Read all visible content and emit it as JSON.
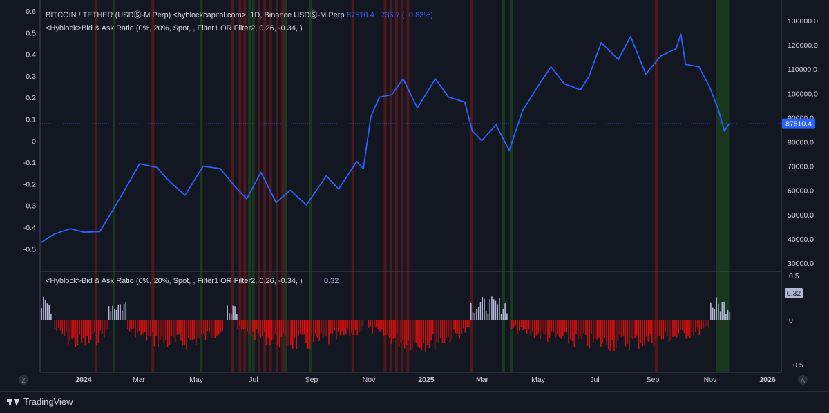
{
  "header": {
    "symbol_line": "BITCOIN / TETHER (USDⓈ-M Perp) <hyblockcapital.com>, 1D, Binance USDⓈ-M Perp",
    "price_info": "87510.4  −736.7 (−0.83%)",
    "indicator_line": "<Hyblock>Bid & Ask Ratio (0%, 20%, Spot, , Filter1 OR Filter2, 0.26, -0.34, )",
    "sub_indicator_line": "<Hyblock>Bid & Ask Ratio (0%, 20%, Spot, , Filter1 OR Filter2, 0.26, -0.34, )",
    "sub_value": "0.32"
  },
  "colors": {
    "background": "#131722",
    "price_line": "#2962ff",
    "bar_negative": "#d50f0f",
    "bar_positive": "#b2b8d6",
    "band_red": "#5a1a1a",
    "band_green": "#1b3a1f",
    "price_tag_bg": "#2962ff",
    "sub_tag_bg": "#b2b8d6",
    "grid": "#1e222d",
    "axis_text": "#d1d4dc"
  },
  "left_axis": {
    "ticks": [
      "0.6",
      "0.5",
      "0.4",
      "0.3",
      "0.2",
      "0.1",
      "0",
      "-0.1",
      "-0.2",
      "-0.3",
      "-0.4",
      "-0.5"
    ]
  },
  "right_axis": {
    "ticks": [
      "130000.0",
      "120000.0",
      "110000.0",
      "100000.0",
      "90000.0",
      "80000.0",
      "70000.0",
      "60000.0",
      "50000.0",
      "40000.0",
      "30000.0"
    ]
  },
  "price_tag": "87510.4",
  "sub_axis": {
    "ticks": [
      "0.5",
      "0",
      "−0.5"
    ]
  },
  "sub_tag": "0.32",
  "time_axis": {
    "labels": [
      "2024",
      "Mar",
      "May",
      "Jul",
      "Sep",
      "Nov",
      "2025",
      "Mar",
      "May",
      "Jul",
      "Sep",
      "Nov",
      "2026"
    ]
  },
  "corner_buttons": {
    "left": "Z",
    "right": "A"
  },
  "footer": {
    "brand": "TradingView"
  },
  "chart_data": {
    "type": "line",
    "title": "BITCOIN / TETHER (USDⓈ-M Perp), 1D",
    "price_series": {
      "name": "BTCUSDT",
      "x": [
        "2023-12-01",
        "2023-12-15",
        "2024-01-01",
        "2024-01-15",
        "2024-02-01",
        "2024-02-15",
        "2024-03-01",
        "2024-03-14",
        "2024-04-01",
        "2024-04-15",
        "2024-05-01",
        "2024-05-20",
        "2024-06-07",
        "2024-06-24",
        "2024-07-05",
        "2024-07-20",
        "2024-08-05",
        "2024-08-20",
        "2024-09-06",
        "2024-09-27",
        "2024-10-10",
        "2024-10-29",
        "2024-11-05",
        "2024-11-13",
        "2024-11-22",
        "2024-12-05",
        "2024-12-17",
        "2025-01-01",
        "2025-01-20",
        "2025-02-03",
        "2025-02-20",
        "2025-02-28",
        "2025-03-10",
        "2025-03-25",
        "2025-04-08",
        "2025-04-22",
        "2025-05-10",
        "2025-05-22",
        "2025-06-05",
        "2025-06-22",
        "2025-07-01",
        "2025-07-14",
        "2025-08-01",
        "2025-08-14",
        "2025-08-30",
        "2025-09-15",
        "2025-10-01",
        "2025-10-06",
        "2025-10-11",
        "2025-10-25",
        "2025-11-05",
        "2025-11-14",
        "2025-11-21",
        "2025-11-26"
      ],
      "values": [
        38500,
        42000,
        44200,
        42800,
        43000,
        52000,
        62000,
        71000,
        69500,
        63500,
        58000,
        70000,
        69000,
        61000,
        56500,
        67500,
        55000,
        60000,
        54000,
        66000,
        60500,
        72000,
        69000,
        90500,
        98500,
        99500,
        106000,
        94000,
        106000,
        98500,
        96500,
        84500,
        80500,
        87000,
        76500,
        93000,
        104000,
        111000,
        104000,
        101500,
        107000,
        121000,
        114000,
        123500,
        108000,
        115500,
        118500,
        124500,
        112000,
        111000,
        103000,
        94000,
        84500,
        87510.4
      ]
    },
    "indicator": {
      "name": "Bid & Ask Ratio",
      "range": [
        -0.5,
        0.5
      ],
      "last_value": 0.32,
      "negative_periods": [
        [
          "2023-12-15",
          "2024-02-10"
        ],
        [
          "2024-03-01",
          "2024-06-10"
        ],
        [
          "2024-06-25",
          "2024-11-05"
        ],
        [
          "2024-11-10",
          "2025-02-25"
        ],
        [
          "2025-04-10",
          "2025-11-05"
        ]
      ],
      "positive_periods": [
        [
          "2023-12-01",
          "2023-12-12"
        ],
        [
          "2024-02-10",
          "2024-02-28"
        ],
        [
          "2024-06-14",
          "2024-06-24"
        ],
        [
          "2025-02-26",
          "2025-04-05"
        ],
        [
          "2025-11-06",
          "2025-11-26"
        ]
      ]
    },
    "signal_bands": {
      "red": [
        "2024-01-28",
        "2024-03-28",
        "2024-06-20",
        "2024-06-28",
        "2024-07-03",
        "2024-07-18",
        "2024-07-24",
        "2024-07-30",
        "2024-08-06",
        "2024-08-12",
        "2024-10-25",
        "2024-11-28",
        "2024-12-04",
        "2024-12-10",
        "2024-12-16",
        "2024-12-22",
        "2025-02-27",
        "2025-09-10"
      ],
      "green": [
        "2024-02-16",
        "2024-05-18",
        "2024-07-08",
        "2024-07-12",
        "2024-08-15",
        "2024-09-10",
        "2025-04-02",
        "2025-04-10"
      ],
      "green_region": [
        "2025-11-12",
        "2025-11-26"
      ]
    },
    "ylim_price": [
      30000,
      130000
    ],
    "ylim_left": [
      -0.5,
      0.6
    ],
    "ylim_sub": [
      -0.5,
      0.5
    ],
    "xlim": [
      "2023-11-30",
      "2026-01-20"
    ],
    "grid": false
  }
}
